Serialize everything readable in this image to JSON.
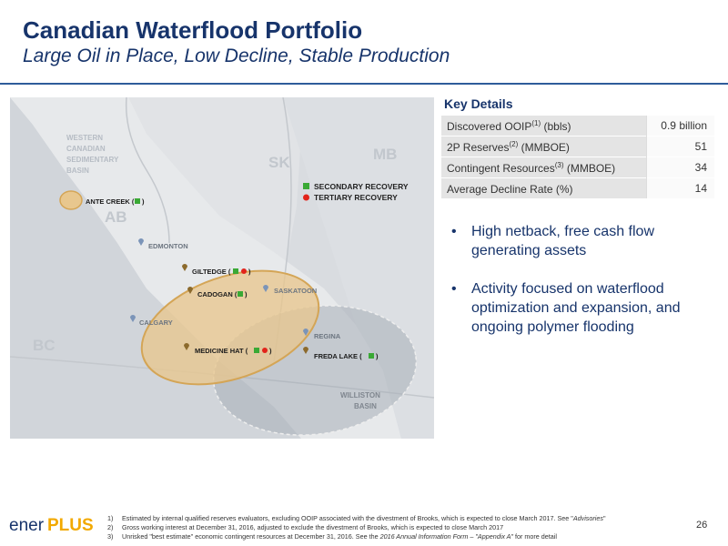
{
  "header": {
    "title": "Canadian Waterflood Portfolio",
    "subtitle": "Large Oil in Place, Low Decline, Stable Production"
  },
  "map": {
    "regions": {
      "basin": [
        "WESTERN",
        "CANADIAN",
        "SEDIMENTARY",
        "BASIN"
      ],
      "sk": "SK",
      "mb": "MB",
      "ab": "AB",
      "bc": "BC",
      "williston": [
        "WILLISTON",
        "BASIN"
      ]
    },
    "legend": {
      "secondary": "SECONDARY RECOVERY",
      "tertiary": "TERTIARY RECOVERY"
    },
    "cities": {
      "edmonton": "EDMONTON",
      "saskatoon": "SASKATOON",
      "calgary": "CALGARY",
      "regina": "REGINA"
    },
    "assets": {
      "ante_creek": "ANTE CREEK (",
      "giltedge": "GILTEDGE (",
      "cadogan": "CADOGAN (",
      "medicine_hat": "MEDICINE HAT (",
      "freda_lake": "FREDA LAKE ("
    },
    "colors": {
      "secondary": "#3aa935",
      "tertiary": "#e2231a",
      "ellipse": "#e8c78e",
      "williston": "#a8afb8"
    }
  },
  "key_details": {
    "title": "Key Details",
    "rows": [
      {
        "label": "Discovered OOIP",
        "sup": "(1)",
        "suffix": " (bbls)",
        "value": "0.9 billion"
      },
      {
        "label": "2P Reserves",
        "sup": "(2)",
        "suffix": " (MMBOE)",
        "value": "51"
      },
      {
        "label": "Contingent Resources",
        "sup": "(3)",
        "suffix": " (MMBOE)",
        "value": "34"
      },
      {
        "label": "Average Decline Rate (%)",
        "sup": "",
        "suffix": "",
        "value": "14"
      }
    ]
  },
  "bullets": [
    "High netback, free cash flow generating assets",
    "Activity focused on waterflood optimization and expansion, and ongoing polymer flooding"
  ],
  "bullet_glyph": "•",
  "footer": {
    "logo_a": "ener",
    "logo_b": "PLUS",
    "page_number": "26",
    "notes": [
      {
        "num": "1)",
        "text": "Estimated by internal qualified reserves evaluators, excluding OOIP associated with the divestment of Brooks, which is expected to close March 2017. See \"",
        "italic": "Advisories",
        "tail": "\""
      },
      {
        "num": "2)",
        "text": "Gross working interest at December 31, 2016, adjusted to exclude the divestment of Brooks, which is expected to close March 2017",
        "italic": "",
        "tail": ""
      },
      {
        "num": "3)",
        "text": "Unrisked \"best estimate\" economic contingent resources at December 31, 2016. See the ",
        "italic": "2016 Annual Information Form – \"Appendix A\"",
        "tail": " for more detail"
      }
    ]
  }
}
